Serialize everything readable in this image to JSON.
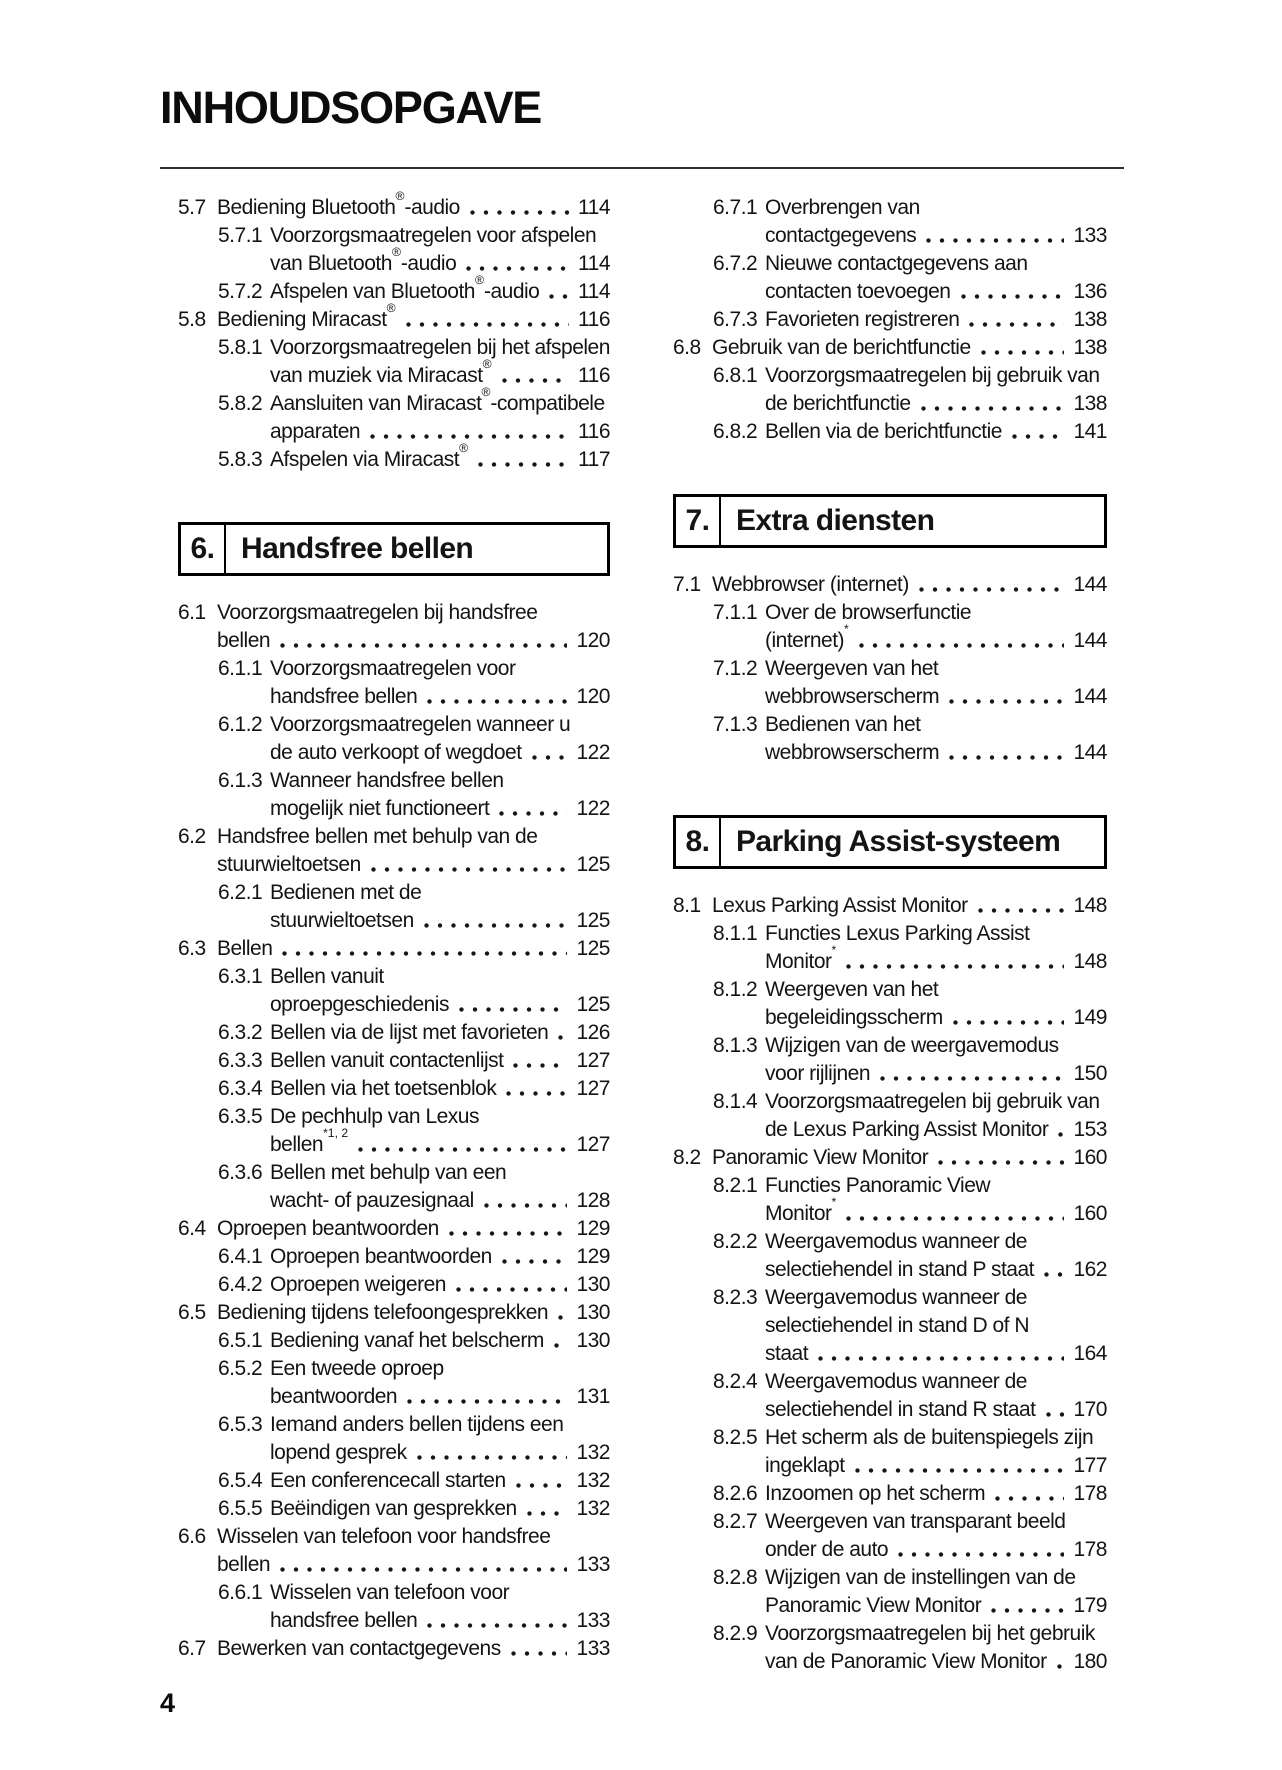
{
  "page": {
    "title": "INHOUDSOPGAVE",
    "page_number": "4"
  },
  "columns": [
    {
      "blocks": [
        {
          "type": "entries",
          "entries": [
            {
              "num": "5.7",
              "level": 1,
              "lines": [
                "Bediening Bluetooth^{®}-audio"
              ],
              "page": "114"
            },
            {
              "num": "5.7.1",
              "level": 2,
              "lines": [
                "Voorzorgsmaatregelen voor afspelen",
                "van Bluetooth^{®}-audio"
              ],
              "page": "114"
            },
            {
              "num": "5.7.2",
              "level": 2,
              "lines": [
                "Afspelen van Bluetooth^{®}-audio"
              ],
              "page": "114"
            },
            {
              "num": "5.8",
              "level": 1,
              "lines": [
                "Bediening Miracast^{®}"
              ],
              "page": "116"
            },
            {
              "num": "5.8.1",
              "level": 2,
              "lines": [
                "Voorzorgsmaatregelen bij het afspelen",
                "van muziek via Miracast^{®}"
              ],
              "page": "116"
            },
            {
              "num": "5.8.2",
              "level": 2,
              "lines": [
                "Aansluiten van Miracast^{®}-compatibele",
                "apparaten"
              ],
              "page": "116"
            },
            {
              "num": "5.8.3",
              "level": 2,
              "lines": [
                "Afspelen via Miracast^{®}"
              ],
              "page": "117"
            }
          ]
        },
        {
          "type": "section",
          "number": "6.",
          "title": "Handsfree bellen"
        },
        {
          "type": "entries",
          "entries": [
            {
              "num": "6.1",
              "level": 1,
              "lines": [
                "Voorzorgsmaatregelen bij handsfree",
                "bellen"
              ],
              "page": "120"
            },
            {
              "num": "6.1.1",
              "level": 2,
              "lines": [
                "Voorzorgsmaatregelen voor",
                "handsfree bellen"
              ],
              "page": "120"
            },
            {
              "num": "6.1.2",
              "level": 2,
              "lines": [
                "Voorzorgsmaatregelen wanneer u",
                "de auto verkoopt of wegdoet"
              ],
              "page": "122"
            },
            {
              "num": "6.1.3",
              "level": 2,
              "lines": [
                "Wanneer handsfree bellen",
                "mogelijk niet functioneert"
              ],
              "page": "122"
            },
            {
              "num": "6.2",
              "level": 1,
              "lines": [
                "Handsfree bellen met behulp van de",
                "stuurwieltoetsen"
              ],
              "page": "125"
            },
            {
              "num": "6.2.1",
              "level": 2,
              "lines": [
                "Bedienen met de",
                "stuurwieltoetsen"
              ],
              "page": "125"
            },
            {
              "num": "6.3",
              "level": 1,
              "lines": [
                "Bellen"
              ],
              "page": "125"
            },
            {
              "num": "6.3.1",
              "level": 2,
              "lines": [
                "Bellen vanuit",
                "oproepgeschiedenis"
              ],
              "page": "125"
            },
            {
              "num": "6.3.2",
              "level": 2,
              "lines": [
                "Bellen via de lijst met favorieten"
              ],
              "page": "126"
            },
            {
              "num": "6.3.3",
              "level": 2,
              "lines": [
                "Bellen vanuit contactenlijst"
              ],
              "page": "127"
            },
            {
              "num": "6.3.4",
              "level": 2,
              "lines": [
                "Bellen via het toetsenblok"
              ],
              "page": "127"
            },
            {
              "num": "6.3.5",
              "level": 2,
              "lines": [
                "De pechhulp van Lexus",
                "bellen^{*1, 2}"
              ],
              "page": "127"
            },
            {
              "num": "6.3.6",
              "level": 2,
              "lines": [
                "Bellen met behulp van een",
                "wacht- of pauzesignaal"
              ],
              "page": "128"
            },
            {
              "num": "6.4",
              "level": 1,
              "lines": [
                "Oproepen beantwoorden"
              ],
              "page": "129"
            },
            {
              "num": "6.4.1",
              "level": 2,
              "lines": [
                "Oproepen beantwoorden"
              ],
              "page": "129"
            },
            {
              "num": "6.4.2",
              "level": 2,
              "lines": [
                "Oproepen weigeren"
              ],
              "page": "130"
            },
            {
              "num": "6.5",
              "level": 1,
              "lines": [
                "Bediening tijdens telefoongesprekken"
              ],
              "page": "130"
            },
            {
              "num": "6.5.1",
              "level": 2,
              "lines": [
                "Bediening vanaf het belscherm"
              ],
              "page": "130"
            },
            {
              "num": "6.5.2",
              "level": 2,
              "lines": [
                "Een tweede oproep",
                "beantwoorden"
              ],
              "page": "131"
            },
            {
              "num": "6.5.3",
              "level": 2,
              "lines": [
                "Iemand anders bellen tijdens een",
                "lopend gesprek"
              ],
              "page": "132"
            },
            {
              "num": "6.5.4",
              "level": 2,
              "lines": [
                "Een conferencecall starten"
              ],
              "page": "132"
            },
            {
              "num": "6.5.5",
              "level": 2,
              "lines": [
                "Beëindigen van gesprekken"
              ],
              "page": "132"
            },
            {
              "num": "6.6",
              "level": 1,
              "lines": [
                "Wisselen van telefoon voor handsfree",
                "bellen"
              ],
              "page": "133"
            },
            {
              "num": "6.6.1",
              "level": 2,
              "lines": [
                "Wisselen van telefoon voor",
                "handsfree bellen"
              ],
              "page": "133"
            },
            {
              "num": "6.7",
              "level": 1,
              "lines": [
                "Bewerken van contactgegevens"
              ],
              "page": "133"
            }
          ]
        }
      ]
    },
    {
      "blocks": [
        {
          "type": "entries",
          "entries": [
            {
              "num": "6.7.1",
              "level": 2,
              "lines": [
                "Overbrengen van",
                "contactgegevens"
              ],
              "page": "133"
            },
            {
              "num": "6.7.2",
              "level": 2,
              "lines": [
                "Nieuwe contactgegevens aan",
                "contacten toevoegen"
              ],
              "page": "136"
            },
            {
              "num": "6.7.3",
              "level": 2,
              "lines": [
                "Favorieten registreren"
              ],
              "page": "138"
            },
            {
              "num": "6.8",
              "level": 1,
              "lines": [
                "Gebruik van de berichtfunctie"
              ],
              "page": "138"
            },
            {
              "num": "6.8.1",
              "level": 2,
              "lines": [
                "Voorzorgsmaatregelen bij gebruik van",
                "de berichtfunctie"
              ],
              "page": "138"
            },
            {
              "num": "6.8.2",
              "level": 2,
              "lines": [
                "Bellen via de berichtfunctie"
              ],
              "page": "141"
            }
          ]
        },
        {
          "type": "section",
          "number": "7.",
          "title": "Extra diensten"
        },
        {
          "type": "entries",
          "entries": [
            {
              "num": "7.1",
              "level": 1,
              "lines": [
                "Webbrowser (internet)"
              ],
              "page": "144"
            },
            {
              "num": "7.1.1",
              "level": 2,
              "lines": [
                "Over de browserfunctie",
                "(internet)^{*}"
              ],
              "page": "144"
            },
            {
              "num": "7.1.2",
              "level": 2,
              "lines": [
                "Weergeven van het",
                "webbrowserscherm"
              ],
              "page": "144"
            },
            {
              "num": "7.1.3",
              "level": 2,
              "lines": [
                "Bedienen van het",
                "webbrowserscherm"
              ],
              "page": "144"
            }
          ]
        },
        {
          "type": "section",
          "number": "8.",
          "title": "Parking Assist-systeem"
        },
        {
          "type": "entries",
          "entries": [
            {
              "num": "8.1",
              "level": 1,
              "lines": [
                "Lexus Parking Assist Monitor"
              ],
              "page": "148"
            },
            {
              "num": "8.1.1",
              "level": 2,
              "lines": [
                "Functies Lexus Parking Assist",
                "Monitor^{*}"
              ],
              "page": "148"
            },
            {
              "num": "8.1.2",
              "level": 2,
              "lines": [
                "Weergeven van het",
                "begeleidingsscherm"
              ],
              "page": "149"
            },
            {
              "num": "8.1.3",
              "level": 2,
              "lines": [
                "Wijzigen van de weergavemodus",
                "voor rijlijnen"
              ],
              "page": "150"
            },
            {
              "num": "8.1.4",
              "level": 2,
              "lines": [
                "Voorzorgsmaatregelen bij gebruik van",
                "de Lexus Parking Assist Monitor"
              ],
              "page": "153"
            },
            {
              "num": "8.2",
              "level": 1,
              "lines": [
                "Panoramic View Monitor"
              ],
              "page": "160"
            },
            {
              "num": "8.2.1",
              "level": 2,
              "lines": [
                "Functies Panoramic View",
                "Monitor^{*}"
              ],
              "page": "160"
            },
            {
              "num": "8.2.2",
              "level": 2,
              "lines": [
                "Weergavemodus wanneer de",
                "selectiehendel in stand P staat"
              ],
              "page": "162"
            },
            {
              "num": "8.2.3",
              "level": 2,
              "lines": [
                "Weergavemodus wanneer de",
                "selectiehendel in stand D of N",
                "staat"
              ],
              "page": "164"
            },
            {
              "num": "8.2.4",
              "level": 2,
              "lines": [
                "Weergavemodus wanneer de",
                "selectiehendel in stand R staat"
              ],
              "page": "170"
            },
            {
              "num": "8.2.5",
              "level": 2,
              "lines": [
                "Het scherm als de buitenspiegels zijn",
                "ingeklapt"
              ],
              "page": "177"
            },
            {
              "num": "8.2.6",
              "level": 2,
              "lines": [
                "Inzoomen op het scherm"
              ],
              "page": "178"
            },
            {
              "num": "8.2.7",
              "level": 2,
              "lines": [
                "Weergeven van transparant beeld",
                "onder de auto"
              ],
              "page": "178"
            },
            {
              "num": "8.2.8",
              "level": 2,
              "lines": [
                "Wijzigen van de instellingen van de",
                "Panoramic View Monitor"
              ],
              "page": "179"
            },
            {
              "num": "8.2.9",
              "level": 2,
              "lines": [
                "Voorzorgsmaatregelen bij het gebruik",
                "van de Panoramic View Monitor"
              ],
              "page": "180"
            }
          ]
        }
      ]
    }
  ]
}
